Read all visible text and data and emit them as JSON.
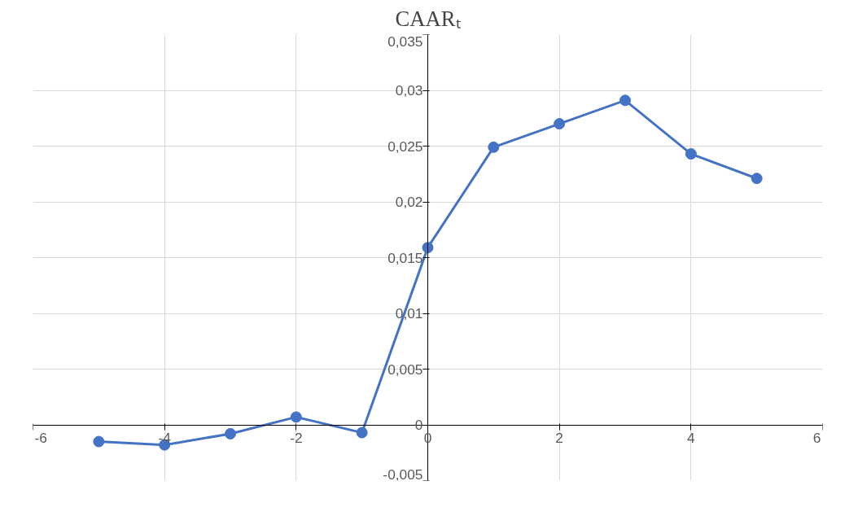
{
  "chart_data": {
    "type": "line",
    "title": "CAARₜ",
    "x": [
      -5,
      -4,
      -3,
      -2,
      -1,
      0,
      1,
      2,
      3,
      4,
      5
    ],
    "series": [
      {
        "color": "#4472c4",
        "values": [
          -0.0015,
          -0.0018,
          -0.0008,
          0.0007,
          -0.0007,
          0.0159,
          0.0249,
          0.027,
          0.0291,
          0.0243,
          0.0221
        ]
      }
    ],
    "xlim": [
      -6,
      6
    ],
    "xticks": [
      -6,
      -4,
      -2,
      0,
      2,
      4,
      6
    ],
    "ylim": [
      -0.005,
      0.035
    ],
    "yticks": [
      {
        "value": -0.005,
        "label": "-0,005"
      },
      {
        "value": 0,
        "label": "0"
      },
      {
        "value": 0.005,
        "label": "0,005"
      },
      {
        "value": 0.01,
        "label": "0,01"
      },
      {
        "value": 0.015,
        "label": "0,015"
      },
      {
        "value": 0.02,
        "label": "0,02"
      },
      {
        "value": 0.025,
        "label": "0,025"
      },
      {
        "value": 0.03,
        "label": "0,03"
      },
      {
        "value": 0.035,
        "label": "0,035"
      }
    ],
    "grid": true,
    "marker": "circle",
    "line_style": "solid"
  }
}
